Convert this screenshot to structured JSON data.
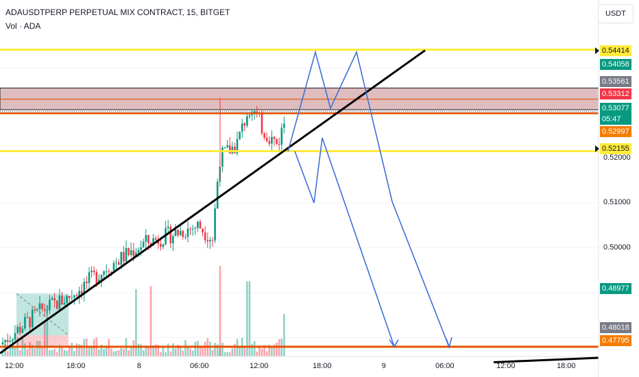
{
  "header": {
    "title": "ADAUSDTPERP PERPETUAL MIX CONTRACT, 15, BITGET",
    "volume_label": "Vol · ADA"
  },
  "currency_button": "USDT",
  "price_axis": {
    "tick_labels": [
      "0.51000",
      "0.50000"
    ],
    "partially_hidden_tick": "0.52000"
  },
  "time_axis": {
    "labels": [
      "12:00",
      "18:00",
      "8",
      "06:00",
      "12:00",
      "18:00",
      "9",
      "06:00",
      "12:00",
      "18:00"
    ]
  },
  "price_tags": [
    {
      "label": "0.54414",
      "bg": "#ffeb3b",
      "fg": "#131722",
      "marker": true
    },
    {
      "label": "0.54058",
      "bg": "#089981",
      "fg": "#ffffff"
    },
    {
      "label": "0.53561",
      "bg": "#787b86",
      "fg": "#ffffff"
    },
    {
      "label": "0.53312",
      "bg": "#f23645",
      "fg": "#ffffff"
    },
    {
      "label": "0.53077",
      "bg": "#089981",
      "fg": "#ffffff"
    },
    {
      "label": "05:47",
      "bg": "#089981",
      "fg": "#ffffff"
    },
    {
      "label": "0.52997",
      "bg": "#f57c00",
      "fg": "#ffffff"
    },
    {
      "label": "0.52155",
      "bg": "#ffeb3b",
      "fg": "#131722",
      "marker": true
    },
    {
      "label": "0.48977",
      "bg": "#089981",
      "fg": "#ffffff"
    },
    {
      "label": "0.48018",
      "bg": "#787b86",
      "fg": "#ffffff"
    },
    {
      "label": "0.47795",
      "bg": "#f57c00",
      "fg": "#ffffff"
    }
  ],
  "colors": {
    "up": "#089981",
    "down": "#f23645",
    "horizontal_level": "#ffeb3b",
    "support_level": "#e65100",
    "zone_fill": "#d4a5a8",
    "trendline": "#000000",
    "projection": "#3d6fd8"
  },
  "chart_data": {
    "type": "candlestick",
    "symbol": "ADAUSDTPERP",
    "interval": "15",
    "y_range": [
      0.4758,
      0.5485
    ],
    "levels": [
      0.54414,
      0.52155,
      0.52997,
      0.53312,
      0.47795
    ],
    "zone": [
      0.53077,
      0.53561
    ],
    "trendline": {
      "from": [
        0,
        0.4765
      ],
      "to": [
        620,
        0.544
      ]
    },
    "projection_paths": [
      {
        "points": [
          [
            420,
            0.5215
          ],
          [
            460,
            0.5436
          ],
          [
            482,
            0.5311
          ],
          [
            520,
            0.5436
          ],
          [
            572,
            0.5103
          ],
          [
            655,
            0.4779
          ]
        ]
      },
      {
        "points": [
          [
            430,
            0.5215
          ],
          [
            458,
            0.51
          ],
          [
            470,
            0.5245
          ],
          [
            575,
            0.478
          ]
        ]
      }
    ],
    "long_position_box": {
      "entry": 0.4805,
      "target": 0.4898,
      "stop": 0.4779
    },
    "close": 0.53077
  }
}
